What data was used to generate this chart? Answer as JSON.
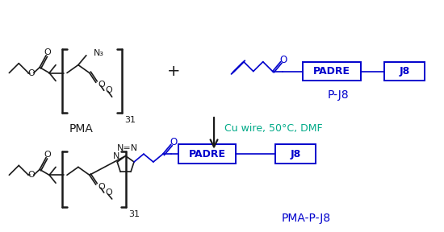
{
  "background_color": "#ffffff",
  "black": "#1a1a1a",
  "blue": "#0000cc",
  "teal": "#00aa88",
  "pma_label": "PMA",
  "pj8_label": "P-J8",
  "pmapj8_label": "PMA-P-J8",
  "condition_text": "Cu wire, 50°C, DMF",
  "padre_text": "PADRE",
  "j8_text": "J8",
  "n3_text": "N₃",
  "plus_sign": "+",
  "sub31": "31",
  "o_text": "O",
  "nzn_text": "N=N",
  "n_text": "N"
}
